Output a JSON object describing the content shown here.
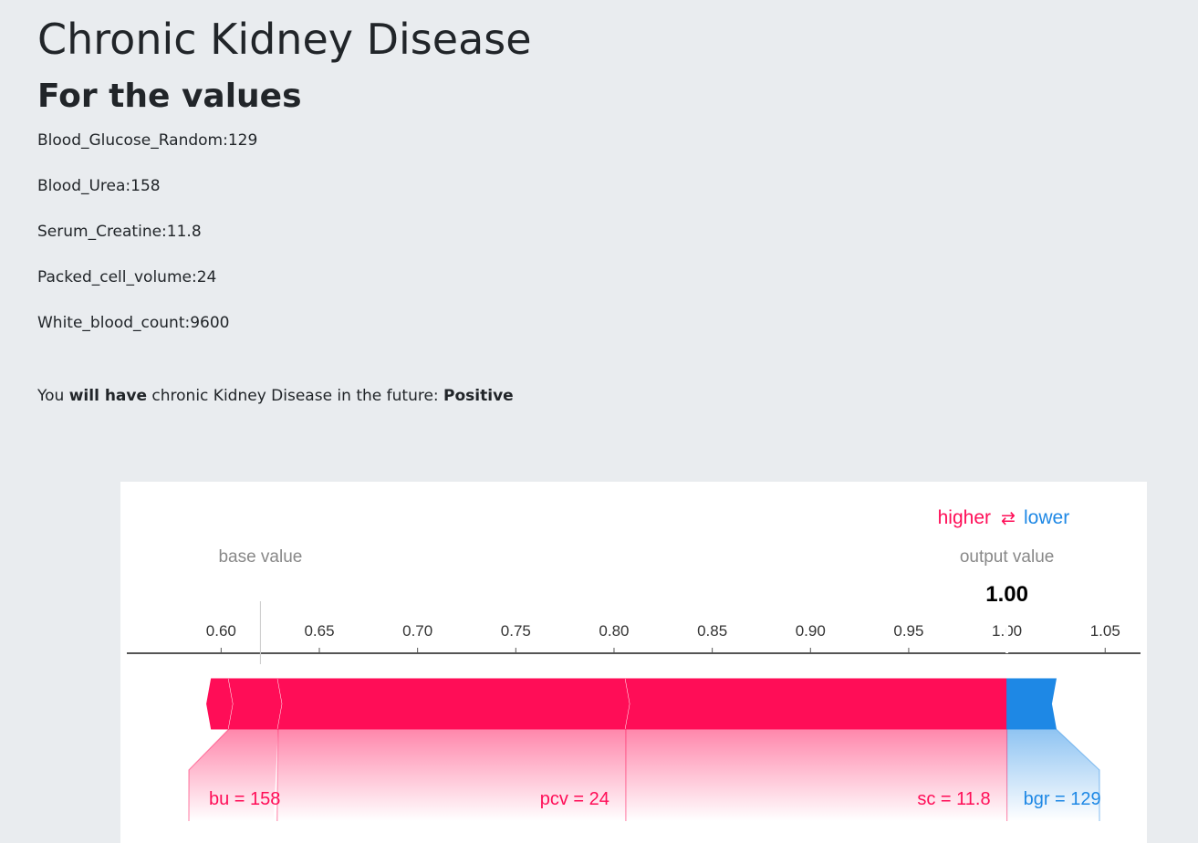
{
  "page": {
    "title": "Chronic Kidney Disease",
    "subtitle": "For the values"
  },
  "values": [
    "Blood_Glucose_Random:129",
    "Blood_Urea:158",
    "Serum_Creatine:11.8",
    "Packed_cell_volume:24",
    "White_blood_count:9600"
  ],
  "result": {
    "prefix": "You",
    "bold_phrase": "will have",
    "middle": "chronic Kidney Disease in the future:",
    "outcome": "Positive"
  },
  "chart_data": {
    "type": "force",
    "legend": {
      "higher": "higher",
      "arrows": "⇄",
      "lower": "lower"
    },
    "base_value_label": "base value",
    "base_value": 0.62,
    "output_value_label": "output value",
    "output_value": 1.0,
    "output_value_text": "1.00",
    "xlim": [
      0.552,
      1.068
    ],
    "ticks": [
      {
        "value": 0.6,
        "label": "0.60"
      },
      {
        "value": 0.65,
        "label": "0.65"
      },
      {
        "value": 0.7,
        "label": "0.70"
      },
      {
        "value": 0.75,
        "label": "0.75"
      },
      {
        "value": 0.8,
        "label": "0.80"
      },
      {
        "value": 0.85,
        "label": "0.85"
      },
      {
        "value": 0.9,
        "label": "0.90"
      },
      {
        "value": 0.95,
        "label": "0.95"
      },
      {
        "value": 1.0,
        "label": "1.00"
      },
      {
        "value": 1.05,
        "label": "1.05"
      }
    ],
    "positive_segments": [
      {
        "name": "wbc",
        "start": 0.595,
        "end": 0.604,
        "label": ""
      },
      {
        "name": "bu",
        "start": 0.604,
        "end": 0.629,
        "label": "bu = 158"
      },
      {
        "name": "pcv",
        "start": 0.629,
        "end": 0.806,
        "label": "pcv = 24"
      },
      {
        "name": "sc",
        "start": 0.806,
        "end": 1.0,
        "label": "sc = 11.8"
      }
    ],
    "negative_segments": [
      {
        "name": "bgr",
        "start": 1.0,
        "end": 1.025,
        "label": "bgr = 129"
      }
    ],
    "colors": {
      "positive": "#ff0d57",
      "negative": "#1e88e5",
      "axis": "#555555",
      "text": "#888888"
    }
  }
}
